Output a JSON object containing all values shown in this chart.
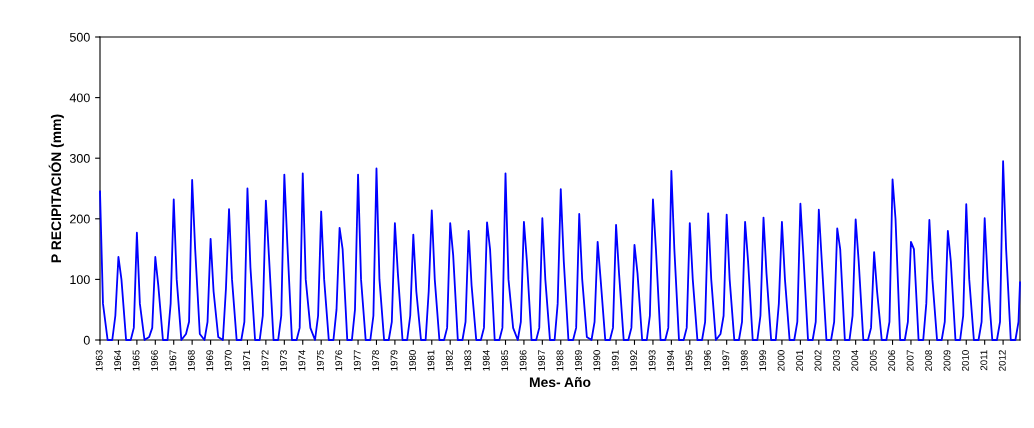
{
  "chart_data": {
    "type": "line",
    "xlabel": "Mes- Año",
    "ylabel": "P RECIPITACIÓN (mm)",
    "ylim": [
      0,
      500
    ],
    "yticks": [
      0,
      100,
      200,
      300,
      400,
      500
    ],
    "xlim": [
      "1963-01",
      "2012-12"
    ],
    "xticks": [
      "1963",
      "1964",
      "1965",
      "1966",
      "1967",
      "1968",
      "1969",
      "1970",
      "1971",
      "1972",
      "1973",
      "1974",
      "1975",
      "1976",
      "1977",
      "1978",
      "1979",
      "1980",
      "1981",
      "1982",
      "1983",
      "1984",
      "1985",
      "1986",
      "1987",
      "1988",
      "1989",
      "1990",
      "1991",
      "1992",
      "1993",
      "1994",
      "1995",
      "1996",
      "1997",
      "1998",
      "1999",
      "2000",
      "2001",
      "2002",
      "2003",
      "2004",
      "2005",
      "2006",
      "2007",
      "2008",
      "2009",
      "2010",
      "2011",
      "2012"
    ],
    "grid": false,
    "marker": "none",
    "line_style": "solid",
    "series": [
      {
        "color": "#0000ff",
        "x": [
          "1963-01",
          "1963-03",
          "1963-06",
          "1963-09",
          "1963-11",
          "1964-01",
          "1964-03",
          "1964-06",
          "1964-09",
          "1964-11",
          "1965-01",
          "1965-03",
          "1965-06",
          "1965-09",
          "1965-11",
          "1966-01",
          "1966-03",
          "1966-06",
          "1966-09",
          "1966-11",
          "1967-01",
          "1967-03",
          "1967-06",
          "1967-09",
          "1967-11",
          "1968-01",
          "1968-03",
          "1968-06",
          "1968-09",
          "1968-11",
          "1969-01",
          "1969-03",
          "1969-06",
          "1969-09",
          "1969-11",
          "1970-01",
          "1970-03",
          "1970-06",
          "1970-09",
          "1970-11",
          "1971-01",
          "1971-03",
          "1971-06",
          "1971-09",
          "1971-11",
          "1972-01",
          "1972-03",
          "1972-06",
          "1972-09",
          "1972-11",
          "1973-01",
          "1973-03",
          "1973-06",
          "1973-09",
          "1973-11",
          "1974-01",
          "1974-03",
          "1974-06",
          "1974-09",
          "1974-11",
          "1975-01",
          "1975-03",
          "1975-06",
          "1975-09",
          "1975-11",
          "1976-01",
          "1976-03",
          "1976-06",
          "1976-09",
          "1976-11",
          "1977-01",
          "1977-03",
          "1977-06",
          "1977-09",
          "1977-11",
          "1978-01",
          "1978-03",
          "1978-06",
          "1978-09",
          "1978-11",
          "1979-01",
          "1979-03",
          "1979-06",
          "1979-09",
          "1979-11",
          "1980-01",
          "1980-03",
          "1980-06",
          "1980-09",
          "1980-11",
          "1981-01",
          "1981-03",
          "1981-06",
          "1981-09",
          "1981-11",
          "1982-01",
          "1982-03",
          "1982-06",
          "1982-09",
          "1982-11",
          "1983-01",
          "1983-03",
          "1983-06",
          "1983-09",
          "1983-11",
          "1984-01",
          "1984-03",
          "1984-06",
          "1984-09",
          "1984-11",
          "1985-01",
          "1985-03",
          "1985-06",
          "1985-09",
          "1985-11",
          "1986-01",
          "1986-03",
          "1986-06",
          "1986-09",
          "1986-11",
          "1987-01",
          "1987-03",
          "1987-06",
          "1987-09",
          "1987-11",
          "1988-01",
          "1988-03",
          "1988-06",
          "1988-09",
          "1988-11",
          "1989-01",
          "1989-03",
          "1989-06",
          "1989-09",
          "1989-11",
          "1990-01",
          "1990-03",
          "1990-06",
          "1990-09",
          "1990-11",
          "1991-01",
          "1991-03",
          "1991-06",
          "1991-09",
          "1991-11",
          "1992-01",
          "1992-03",
          "1992-06",
          "1992-09",
          "1992-11",
          "1993-01",
          "1993-03",
          "1993-06",
          "1993-09",
          "1993-11",
          "1994-01",
          "1994-03",
          "1994-06",
          "1994-09",
          "1994-11",
          "1995-01",
          "1995-03",
          "1995-06",
          "1995-09",
          "1995-11",
          "1996-01",
          "1996-03",
          "1996-06",
          "1996-09",
          "1996-11",
          "1997-01",
          "1997-03",
          "1997-06",
          "1997-09",
          "1997-11",
          "1998-01",
          "1998-03",
          "1998-06",
          "1998-09",
          "1998-11",
          "1999-01",
          "1999-03",
          "1999-06",
          "1999-09",
          "1999-11",
          "2000-01",
          "2000-03",
          "2000-06",
          "2000-09",
          "2000-11",
          "2001-01",
          "2001-03",
          "2001-06",
          "2001-09",
          "2001-11",
          "2002-01",
          "2002-03",
          "2002-06",
          "2002-09",
          "2002-11",
          "2003-01",
          "2003-03",
          "2003-06",
          "2003-09",
          "2003-11",
          "2004-01",
          "2004-03",
          "2004-06",
          "2004-09",
          "2004-11",
          "2005-01",
          "2005-03",
          "2005-06",
          "2005-09",
          "2005-11",
          "2006-01",
          "2006-03",
          "2006-06",
          "2006-09",
          "2006-11",
          "2007-01",
          "2007-03",
          "2007-06",
          "2007-09",
          "2007-11",
          "2008-01",
          "2008-03",
          "2008-06",
          "2008-09",
          "2008-11",
          "2009-01",
          "2009-03",
          "2009-06",
          "2009-09",
          "2009-11",
          "2010-01",
          "2010-03",
          "2010-06",
          "2010-09",
          "2010-11",
          "2011-01",
          "2011-03",
          "2011-06",
          "2011-09",
          "2011-11",
          "2012-01",
          "2012-03",
          "2012-06",
          "2012-09",
          "2012-11",
          "2012-12"
        ],
        "values": [
          245,
          60,
          0,
          0,
          40,
          137,
          100,
          0,
          0,
          20,
          177,
          60,
          0,
          5,
          20,
          137,
          90,
          0,
          0,
          60,
          232,
          100,
          0,
          10,
          30,
          264,
          150,
          10,
          0,
          30,
          167,
          80,
          5,
          0,
          85,
          216,
          100,
          0,
          0,
          30,
          250,
          120,
          0,
          0,
          40,
          230,
          140,
          0,
          0,
          40,
          273,
          160,
          0,
          0,
          20,
          275,
          100,
          20,
          0,
          40,
          212,
          100,
          0,
          0,
          50,
          185,
          150,
          0,
          0,
          50,
          273,
          100,
          0,
          0,
          40,
          283,
          100,
          0,
          0,
          30,
          193,
          110,
          0,
          0,
          40,
          174,
          80,
          0,
          0,
          80,
          214,
          100,
          0,
          0,
          20,
          193,
          140,
          0,
          0,
          30,
          180,
          90,
          0,
          0,
          20,
          194,
          150,
          0,
          0,
          20,
          275,
          100,
          20,
          0,
          30,
          195,
          130,
          0,
          0,
          20,
          201,
          100,
          0,
          0,
          60,
          249,
          130,
          0,
          0,
          20,
          208,
          100,
          5,
          0,
          30,
          162,
          100,
          0,
          0,
          20,
          190,
          110,
          0,
          0,
          20,
          157,
          110,
          0,
          0,
          40,
          232,
          150,
          0,
          0,
          20,
          279,
          150,
          0,
          0,
          20,
          193,
          100,
          0,
          0,
          30,
          209,
          100,
          0,
          10,
          40,
          207,
          100,
          0,
          0,
          30,
          195,
          130,
          0,
          0,
          40,
          202,
          110,
          0,
          0,
          60,
          195,
          100,
          0,
          0,
          30,
          225,
          140,
          0,
          0,
          30,
          215,
          130,
          0,
          0,
          30,
          184,
          150,
          0,
          0,
          40,
          199,
          130,
          0,
          0,
          20,
          145,
          80,
          0,
          0,
          30,
          265,
          200,
          0,
          0,
          30,
          162,
          150,
          0,
          0,
          60,
          198,
          100,
          0,
          0,
          30,
          180,
          130,
          0,
          0,
          40,
          224,
          100,
          0,
          0,
          30,
          201,
          100,
          0,
          0,
          30,
          295,
          150,
          0,
          0,
          30,
          95
        ]
      }
    ]
  }
}
